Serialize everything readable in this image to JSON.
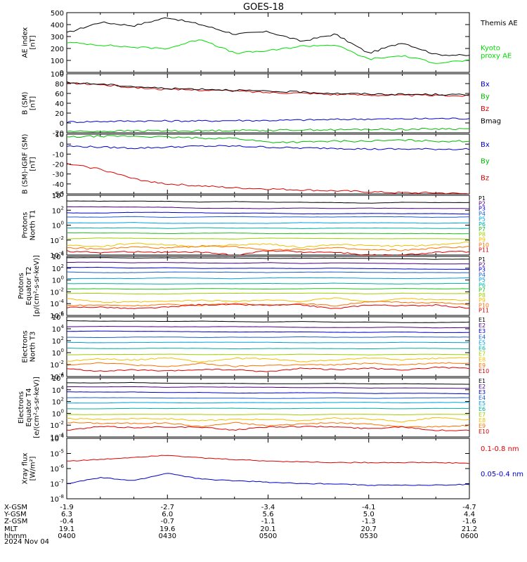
{
  "title": "GOES-18",
  "x_ticks": [
    "0400",
    "0430",
    "0500",
    "0530",
    "0600"
  ],
  "orbit_table": {
    "row_labels": [
      "X-GSM",
      "Y-GSM",
      "Z-GSM",
      "MLT",
      "hhmm"
    ],
    "columns": [
      [
        "-1.9",
        "6.3",
        "-0.4",
        "19.1",
        "0400"
      ],
      [
        "-2.7",
        "6.0",
        "-0.7",
        "19.6",
        "0430"
      ],
      [
        "-3.4",
        "5.6",
        "-1.1",
        "20.1",
        "0500"
      ],
      [
        "-4.1",
        "5.0",
        "-1.3",
        "20.7",
        "0530"
      ],
      [
        "-4.7",
        "4.4",
        "-1.6",
        "21.2",
        "0600"
      ]
    ]
  },
  "date_label": "2024 Nov 04",
  "chart_data": [
    {
      "type": "line",
      "ylabel": "AE index\n[nT]",
      "ylim": [
        0,
        500
      ],
      "yscale": "linear",
      "ytick_labels": [
        "0",
        "100",
        "200",
        "300",
        "400",
        "500"
      ],
      "x": [
        "04:00",
        "04:10",
        "04:20",
        "04:30",
        "04:40",
        "04:50",
        "05:00",
        "05:10",
        "05:20",
        "05:30",
        "05:40",
        "05:50",
        "06:00"
      ],
      "series": [
        {
          "name": "Themis AE",
          "color": "#000000",
          "values": [
            330,
            420,
            390,
            460,
            400,
            320,
            340,
            260,
            320,
            160,
            250,
            150,
            140
          ]
        },
        {
          "name": "Kyoto proxy AE",
          "color": "#00dd00",
          "values": [
            250,
            230,
            210,
            200,
            280,
            160,
            180,
            220,
            230,
            110,
            140,
            80,
            100
          ]
        }
      ]
    },
    {
      "type": "line",
      "ylabel": "B (SM)\n[nT]",
      "ylim": [
        -20,
        100
      ],
      "yscale": "linear",
      "ytick_labels": [
        "-20",
        "0",
        "20",
        "40",
        "60",
        "80",
        "100"
      ],
      "x": [
        "04:00",
        "04:10",
        "04:20",
        "04:30",
        "04:40",
        "04:50",
        "05:00",
        "05:10",
        "05:20",
        "05:30",
        "05:40",
        "05:50",
        "06:00"
      ],
      "series": [
        {
          "name": "Bx",
          "color": "#0000cc",
          "values": [
            2,
            3,
            4,
            4,
            4,
            5,
            5,
            6,
            7,
            8,
            8,
            9,
            9
          ]
        },
        {
          "name": "By",
          "color": "#00bb00",
          "values": [
            -17,
            -17,
            -16,
            -16,
            -16,
            -15,
            -15,
            -14,
            -14,
            -13,
            -13,
            -12,
            -12
          ]
        },
        {
          "name": "Bz",
          "color": "#dd0000",
          "values": [
            81,
            78,
            72,
            68,
            67,
            65,
            62,
            61,
            58,
            57,
            56,
            56,
            55
          ]
        },
        {
          "name": "Bmag",
          "color": "#000000",
          "values": [
            82,
            79,
            74,
            70,
            69,
            67,
            64,
            63,
            60,
            59,
            58,
            58,
            57
          ]
        }
      ]
    },
    {
      "type": "line",
      "ylabel": "B (SM)-IGRF (SM)\n[nT]",
      "ylim": [
        -50,
        10
      ],
      "yscale": "linear",
      "ytick_labels": [
        "-50",
        "-40",
        "-30",
        "-20",
        "-10",
        "0",
        "10"
      ],
      "x": [
        "04:00",
        "04:10",
        "04:20",
        "04:30",
        "04:40",
        "04:50",
        "05:00",
        "05:10",
        "05:20",
        "05:30",
        "05:40",
        "05:50",
        "06:00"
      ],
      "series": [
        {
          "name": "Bx",
          "color": "#0000cc",
          "values": [
            -2,
            -3,
            -4,
            -3,
            -2,
            -2,
            -3,
            -4,
            -4,
            -5,
            -5,
            -5,
            -5
          ]
        },
        {
          "name": "By",
          "color": "#00bb00",
          "values": [
            7,
            8,
            8,
            7,
            6,
            6,
            2,
            2,
            3,
            3,
            4,
            3,
            3
          ]
        },
        {
          "name": "Bz",
          "color": "#dd0000",
          "values": [
            -20,
            -25,
            -35,
            -40,
            -42,
            -44,
            -45,
            -46,
            -47,
            -48,
            -49,
            -49,
            -50
          ]
        }
      ]
    },
    {
      "type": "line",
      "ylabel": "Protons\nNorth T1",
      "yscale": "log",
      "ylim_exp": [
        -4,
        4
      ],
      "ytick_labels": [
        "10^-4",
        "10^-2",
        "10^0",
        "10^2",
        "10^4"
      ],
      "channels": [
        "P1",
        "P2",
        "P3",
        "P4",
        "P5",
        "P6",
        "P7",
        "P8",
        "P9",
        "P10",
        "P11"
      ],
      "levels_log10": [
        3.2,
        2.4,
        1.7,
        1.1,
        0.3,
        -0.4,
        -1.1,
        -1.8,
        -2.6,
        -3.1,
        -3.7
      ],
      "colors": [
        "#000000",
        "#4b0082",
        "#0000cc",
        "#1a5fd0",
        "#00a0e0",
        "#00b0a0",
        "#20c020",
        "#a0d000",
        "#f0c000",
        "#ff7000",
        "#dd0000"
      ]
    },
    {
      "type": "line",
      "ylabel": "Protons\nEquator T2\n[p/(cm²-s-sr-keV)]",
      "yscale": "log",
      "ylim_exp": [
        -6,
        4
      ],
      "ytick_labels": [
        "10^-6",
        "10^-4",
        "10^-2",
        "10^0",
        "10^2",
        "10^4"
      ],
      "channels": [
        "P1",
        "P2",
        "P3",
        "P4",
        "P5",
        "P6",
        "P7",
        "P8",
        "P9",
        "P10",
        "P11"
      ],
      "levels_log10": [
        3.8,
        3.0,
        2.1,
        1.3,
        0.3,
        -0.6,
        -1.5,
        -2.3,
        -3.4,
        -4.0,
        -4.5
      ],
      "colors": [
        "#000000",
        "#4b0082",
        "#0000cc",
        "#1a5fd0",
        "#00a0e0",
        "#00b0a0",
        "#20c020",
        "#a0d000",
        "#f0c000",
        "#ff7000",
        "#dd0000"
      ]
    },
    {
      "type": "line",
      "ylabel": "Electrons\nNorth T3",
      "yscale": "log",
      "ylim_exp": [
        -4,
        6
      ],
      "ytick_labels": [
        "10^-4",
        "10^-2",
        "10^0",
        "10^2",
        "10^4",
        "10^6"
      ],
      "channels": [
        "E1",
        "E2",
        "E3",
        "E4",
        "E5",
        "E6",
        "E7",
        "E8",
        "E9",
        "E10"
      ],
      "levels_log10": [
        5.3,
        4.4,
        3.6,
        2.6,
        1.7,
        0.7,
        -0.3,
        -1.2,
        -2.0,
        -2.8
      ],
      "colors": [
        "#000000",
        "#4b0082",
        "#0000cc",
        "#1a5fd0",
        "#00a0e0",
        "#00b0a0",
        "#a0d000",
        "#f0c000",
        "#ff7000",
        "#dd0000"
      ]
    },
    {
      "type": "line",
      "ylabel": "Electrons\nEquator T4\n[e/(cm²-s-sr-keV)]",
      "yscale": "log",
      "ylim_exp": [
        -4,
        6
      ],
      "ytick_labels": [
        "10^-4",
        "10^-2",
        "10^0",
        "10^2",
        "10^4",
        "10^6"
      ],
      "channels": [
        "E1",
        "E2",
        "E3",
        "E4",
        "E5",
        "E6",
        "E7",
        "E8",
        "E9",
        "E10"
      ],
      "levels_log10": [
        5.2,
        4.5,
        3.6,
        2.6,
        1.8,
        0.8,
        -0.2,
        -1.1,
        -1.9,
        -2.6
      ],
      "colors": [
        "#000000",
        "#4b0082",
        "#0000cc",
        "#1a5fd0",
        "#00a0e0",
        "#00b0a0",
        "#a0d000",
        "#f0c000",
        "#ff7000",
        "#dd0000"
      ]
    },
    {
      "type": "line",
      "ylabel": "Xray flux\n[W/m²]",
      "yscale": "log",
      "ylim_exp": [
        -8,
        -4
      ],
      "ytick_labels": [
        "10^-8",
        "10^-7",
        "10^-6",
        "10^-5",
        "10^-4"
      ],
      "x": [
        "04:00",
        "04:10",
        "04:20",
        "04:30",
        "04:40",
        "04:50",
        "05:00",
        "05:10",
        "05:20",
        "05:30",
        "05:40",
        "05:50",
        "06:00"
      ],
      "series": [
        {
          "name": "0.1-0.8 nm",
          "color": "#dd0000",
          "values_log10": [
            -5.5,
            -5.4,
            -5.25,
            -5.1,
            -5.3,
            -5.4,
            -5.5,
            -5.55,
            -5.6,
            -5.6,
            -5.6,
            -5.6,
            -5.65
          ]
        },
        {
          "name": "0.05-0.4 nm",
          "color": "#0000cc",
          "values_log10": [
            -7.0,
            -6.6,
            -6.8,
            -6.3,
            -6.7,
            -6.8,
            -6.9,
            -7.0,
            -7.0,
            -7.1,
            -7.1,
            -7.1,
            -7.05
          ]
        }
      ]
    }
  ]
}
